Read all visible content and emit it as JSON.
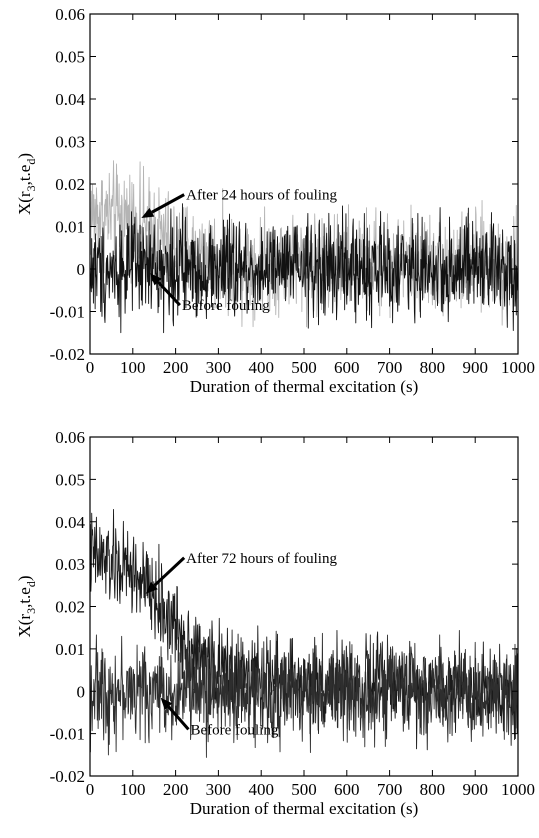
{
  "chart_data": [
    {
      "type": "line",
      "xlabel": "Duration of thermal excitation (s)",
      "ylabel_main": "X(r",
      "ylabel_sub1": "3",
      "ylabel_mid": ",t.e",
      "ylabel_sub2": "d",
      "ylabel_end": ")",
      "xlim": [
        0,
        1000
      ],
      "ylim": [
        -0.02,
        0.06
      ],
      "xticks": [
        0,
        100,
        200,
        300,
        400,
        500,
        600,
        700,
        800,
        900,
        1000
      ],
      "yticks": [
        -0.02,
        -0.01,
        0,
        0.01,
        0.02,
        0.03,
        0.04,
        0.05,
        0.06
      ],
      "ytick_labels": [
        "-0.02",
        "-0.01",
        "0",
        "0.01",
        "0.02",
        "0.03",
        "0.04",
        "0.05",
        "0.06"
      ],
      "grid": false,
      "series": [
        {
          "name": "After 24 hours of fouling",
          "color": "#b4b4b4",
          "trend": [
            [
              0,
              0.013
            ],
            [
              100,
              0.012
            ],
            [
              150,
              0.009
            ],
            [
              200,
              0.005
            ],
            [
              300,
              0.002
            ],
            [
              1000,
              0.001
            ]
          ],
          "noise_amplitude": 0.0058
        },
        {
          "name": "Before fouling",
          "color": "#111111",
          "trend": [
            [
              0,
              0.0
            ],
            [
              1000,
              0.0
            ]
          ],
          "noise_amplitude": 0.0058
        }
      ],
      "annotations": [
        {
          "text": "After 24 hours of fouling",
          "point": [
            120,
            0.012
          ],
          "label_at": [
            220,
            0.0175
          ]
        },
        {
          "text": "Before fouling",
          "point": [
            140,
            -0.001
          ],
          "label_at": [
            210,
            -0.0085
          ]
        }
      ]
    },
    {
      "type": "line",
      "xlabel": "Duration of thermal excitation (s)",
      "ylabel_main": "X(r",
      "ylabel_sub1": "3",
      "ylabel_mid": ",t.e",
      "ylabel_sub2": "d",
      "ylabel_end": ")",
      "xlim": [
        0,
        1000
      ],
      "ylim": [
        -0.02,
        0.06
      ],
      "xticks": [
        0,
        100,
        200,
        300,
        400,
        500,
        600,
        700,
        800,
        900,
        1000
      ],
      "yticks": [
        -0.02,
        -0.01,
        0,
        0.01,
        0.02,
        0.03,
        0.04,
        0.05,
        0.06
      ],
      "ytick_labels": [
        "-0.02",
        "-0.01",
        "0",
        "0.01",
        "0.02",
        "0.03",
        "0.04",
        "0.05",
        "0.06"
      ],
      "grid": false,
      "series": [
        {
          "name": "After 72 hours of fouling",
          "color": "#1a1a1a",
          "trend": [
            [
              0,
              0.032
            ],
            [
              50,
              0.03
            ],
            [
              100,
              0.028
            ],
            [
              150,
              0.022
            ],
            [
              200,
              0.015
            ],
            [
              250,
              0.009
            ],
            [
              300,
              0.005
            ],
            [
              350,
              0.003
            ],
            [
              450,
              0.002
            ],
            [
              600,
              0.0015
            ],
            [
              1000,
              0.0
            ]
          ],
          "noise_amplitude": 0.0052
        },
        {
          "name": "Before fouling",
          "color": "#2e2e2e",
          "trend": [
            [
              0,
              0.0
            ],
            [
              1000,
              0.0
            ]
          ],
          "noise_amplitude": 0.0055
        }
      ],
      "annotations": [
        {
          "text": "After 72 hours of fouling",
          "point": [
            130,
            0.023
          ],
          "label_at": [
            220,
            0.0315
          ]
        },
        {
          "text": "Before fouling",
          "point": [
            165,
            -0.0015
          ],
          "label_at": [
            230,
            -0.009
          ]
        }
      ]
    }
  ]
}
